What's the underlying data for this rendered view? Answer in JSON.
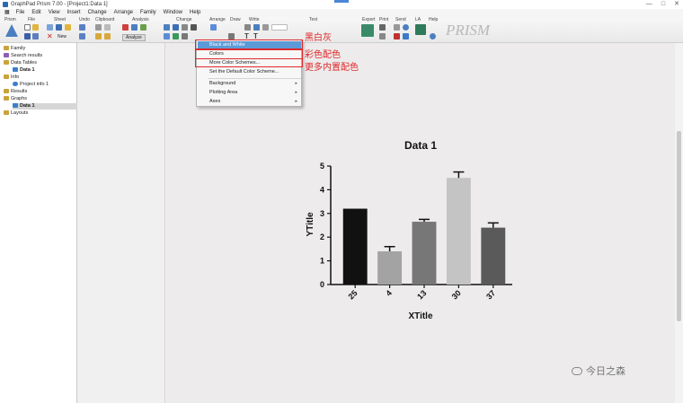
{
  "window": {
    "title": "GraphPad Prism 7.00 - [Project1:Data 1]",
    "controls": [
      "—",
      "□",
      "✕"
    ]
  },
  "menu": [
    "File",
    "Edit",
    "View",
    "Insert",
    "Change",
    "Arrange",
    "Family",
    "Window",
    "Help"
  ],
  "toolbar": {
    "sections": [
      "Prism",
      "File",
      "Sheet",
      "Undo",
      "Clipboard",
      "Analysis",
      "Change",
      "Arrange",
      "Draw",
      "Write",
      "Text",
      "Export",
      "Print",
      "Send",
      "LA",
      "Help"
    ],
    "analyze_label": "Analyze",
    "new_label": "New",
    "logo_text": "PRISM"
  },
  "navigator": {
    "items": [
      {
        "label": "Family",
        "color": "#c9a33a"
      },
      {
        "label": "Search results",
        "color": "#8a5fb5"
      },
      {
        "label": "Data Tables",
        "color": "#c9a33a"
      },
      {
        "label": "Data 1",
        "color": "#3a7fc9",
        "selected": false
      },
      {
        "label": "Info",
        "color": "#c9a33a"
      },
      {
        "label": "Project info 1",
        "color": "#3a7fc9"
      },
      {
        "label": "Results",
        "color": "#c9a33a"
      },
      {
        "label": "Graphs",
        "color": "#c9a33a"
      },
      {
        "label": "Data 1",
        "color": "#3a7fc9",
        "selected": true
      },
      {
        "label": "Layouts",
        "color": "#c9a33a"
      }
    ]
  },
  "dropdown": {
    "items": [
      {
        "label": "Black and White",
        "highlighted": true
      },
      {
        "label": "Colors"
      },
      {
        "label": "More Color Schemes..."
      },
      {
        "label": "Set the Default Color Scheme..."
      },
      {
        "label": "Background",
        "submenu": true
      },
      {
        "label": "Plotting Area",
        "submenu": true
      },
      {
        "label": "Axes",
        "submenu": true
      }
    ]
  },
  "annotations": {
    "bw": "黑白灰",
    "colors": "彩色配色",
    "more": "更多内置配色"
  },
  "watermark": "今日之森",
  "chart_data": {
    "type": "bar",
    "title": "Data 1",
    "xlabel": "XTitle",
    "ylabel": "YTitle",
    "categories": [
      "25",
      "4",
      "13",
      "30",
      "37"
    ],
    "values": [
      3.2,
      1.4,
      2.65,
      4.5,
      2.4
    ],
    "errors": [
      0,
      0.2,
      0.1,
      0.25,
      0.2
    ],
    "bar_colors": [
      "#111111",
      "#a3a3a3",
      "#777777",
      "#c4c4c4",
      "#5a5a5a"
    ],
    "ylim": [
      0,
      5
    ],
    "yticks": [
      "0",
      "1",
      "2",
      "3",
      "4",
      "5"
    ],
    "grid": false
  }
}
